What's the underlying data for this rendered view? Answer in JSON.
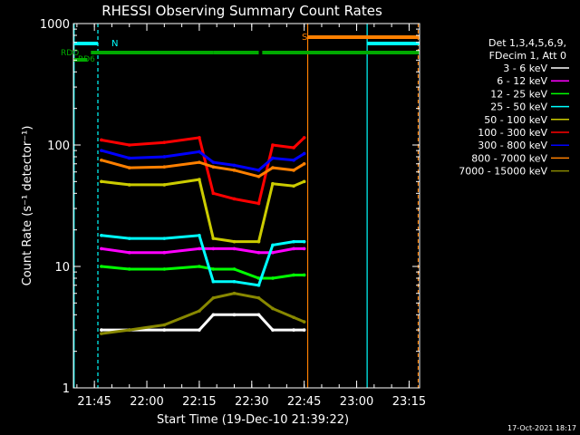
{
  "title": "RHESSI Observing Summary Count Rates",
  "xlabel": "Start Time (19-Dec-10 21:39:22)",
  "ylabel": "Count Rate (s⁻¹ detector⁻¹)",
  "footer_date": "17-Oct-2021 18:17",
  "legend_header": [
    "Det 1,3,4,5,6,9,",
    "FDecim 1, Att 0"
  ],
  "flags": {
    "N": "N",
    "S": "S",
    "RDO": "RDO",
    "RD6": "RD6"
  },
  "colors": {
    "bg": "#000000",
    "axis": "#ffffff",
    "cyan": "#00ffff",
    "green": "#00aa00",
    "orange": "#ff8000"
  },
  "chart_data": {
    "type": "line",
    "title": "RHESSI Observing Summary Count Rates",
    "xlabel": "Start Time (19-Dec-10 21:39:22)",
    "ylabel": "Count Rate (s⁻¹ detector⁻¹)",
    "yscale": "log",
    "ylim": [
      1,
      1000
    ],
    "xlim": [
      "21:39",
      "23:18"
    ],
    "x_ticks": [
      "21:45",
      "22:00",
      "22:15",
      "22:30",
      "22:45",
      "23:00",
      "23:15"
    ],
    "y_ticks": [
      "1",
      "10",
      "100",
      "1000"
    ],
    "x": [
      "21:47",
      "21:55",
      "22:05",
      "22:15",
      "22:19",
      "22:25",
      "22:32",
      "22:36",
      "22:42",
      "22:45"
    ],
    "series": [
      {
        "name": "3 - 6 keV",
        "color": "#ffffff",
        "values": [
          3.0,
          3.0,
          3.0,
          3.0,
          4.0,
          4.0,
          4.0,
          3.0,
          3.0,
          3.0
        ]
      },
      {
        "name": "6 - 12 keV",
        "color": "#ff00ff",
        "values": [
          14,
          13,
          13,
          14,
          14,
          14,
          13,
          13,
          14,
          14
        ]
      },
      {
        "name": "12 - 25 keV",
        "color": "#00ff00",
        "values": [
          10,
          9.5,
          9.5,
          10,
          9.5,
          9.5,
          8,
          8,
          8.5,
          8.5
        ]
      },
      {
        "name": "25 - 50 keV",
        "color": "#00ffff",
        "values": [
          18,
          17,
          17,
          18,
          7.5,
          7.5,
          7,
          15,
          16,
          16
        ]
      },
      {
        "name": "50 - 100 keV",
        "color": "#cccc00",
        "values": [
          50,
          47,
          47,
          52,
          17,
          16,
          16,
          48,
          46,
          50
        ]
      },
      {
        "name": "100 - 300 keV",
        "color": "#ff0000",
        "values": [
          110,
          100,
          105,
          115,
          40,
          36,
          33,
          100,
          95,
          115
        ]
      },
      {
        "name": "300 - 800 keV",
        "color": "#0000ff",
        "values": [
          90,
          78,
          80,
          88,
          72,
          68,
          62,
          78,
          75,
          85
        ]
      },
      {
        "name": "800 - 7000 keV",
        "color": "#ff8000",
        "values": [
          75,
          65,
          66,
          72,
          66,
          62,
          55,
          65,
          62,
          70
        ]
      },
      {
        "name": "7000 - 15000 keV",
        "color": "#888800",
        "values": [
          2.8,
          3.0,
          3.3,
          4.3,
          5.5,
          6.0,
          5.5,
          4.5,
          3.8,
          3.5
        ]
      }
    ],
    "flag_bars": [
      {
        "name": "N",
        "color": "#00ffff",
        "segments": [
          [
            "21:39",
            "21:46"
          ],
          [
            "23:03",
            "23:18"
          ]
        ]
      },
      {
        "name": "S",
        "color": "#ff8000",
        "segments": [
          [
            "22:46",
            "23:18"
          ]
        ]
      },
      {
        "name": "RDO",
        "color": "#00aa00",
        "segments": [
          [
            "21:44",
            "22:19"
          ],
          [
            "22:19",
            "22:32"
          ],
          [
            "22:33",
            "23:18"
          ]
        ]
      },
      {
        "name": "RD6",
        "color": "#00aa00",
        "segments": [
          [
            "21:39",
            "21:43"
          ]
        ]
      }
    ],
    "grid": false,
    "legend": "right"
  }
}
